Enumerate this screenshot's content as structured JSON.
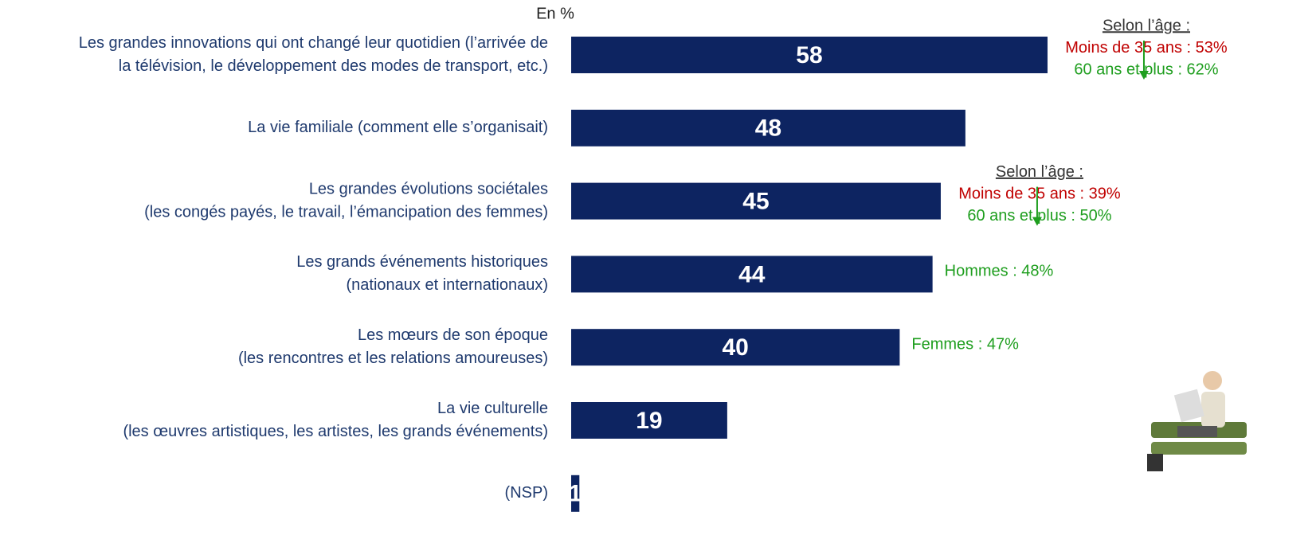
{
  "chart_data": {
    "type": "bar",
    "orientation": "horizontal",
    "unit_label": "En %",
    "color": "#0d2461",
    "label_color": "#1f3a6e",
    "categories": [
      [
        "Les grandes innovations qui ont changé leur quotidien (l’arrivée de",
        "la télévision, le développement des modes de transport, etc.)"
      ],
      [
        "La vie familiale (comment elle s’organisait)"
      ],
      [
        "Les grandes évolutions sociétales",
        "(les congés payés, le travail, l’émancipation des femmes)"
      ],
      [
        "Les grands événements historiques",
        "(nationaux et internationaux)"
      ],
      [
        "Les mœurs de son époque",
        "(les rencontres et les relations amoureuses)"
      ],
      [
        "La vie culturelle",
        "(les œuvres artistiques, les artistes, les grands événements)"
      ],
      [
        "(NSP)"
      ]
    ],
    "values": [
      58,
      48,
      45,
      44,
      40,
      19,
      1
    ],
    "annotations": [
      {
        "arrow": "#1e9e1e",
        "lines": [
          {
            "text": "Selon l’âge :",
            "color": "#333333",
            "underline": true
          },
          {
            "text": "Moins de 35 ans : 53%",
            "color": "#c00000"
          },
          {
            "text": "60 ans et plus : 62%",
            "color": "#1e9e1e"
          }
        ]
      },
      null,
      {
        "arrow": "#1e9e1e",
        "lines": [
          {
            "text": "Selon l’âge :",
            "color": "#333333",
            "underline": true
          },
          {
            "text": "Moins de 35 ans : 39%",
            "color": "#c00000"
          },
          {
            "text": "60 ans et plus : 50%",
            "color": "#1e9e1e"
          }
        ]
      },
      {
        "lines": [
          {
            "text": "Hommes : 48%",
            "color": "#1e9e1e"
          }
        ]
      },
      {
        "lines": [
          {
            "text": "Femmes : 47%",
            "color": "#1e9e1e"
          }
        ]
      },
      null,
      null
    ]
  }
}
